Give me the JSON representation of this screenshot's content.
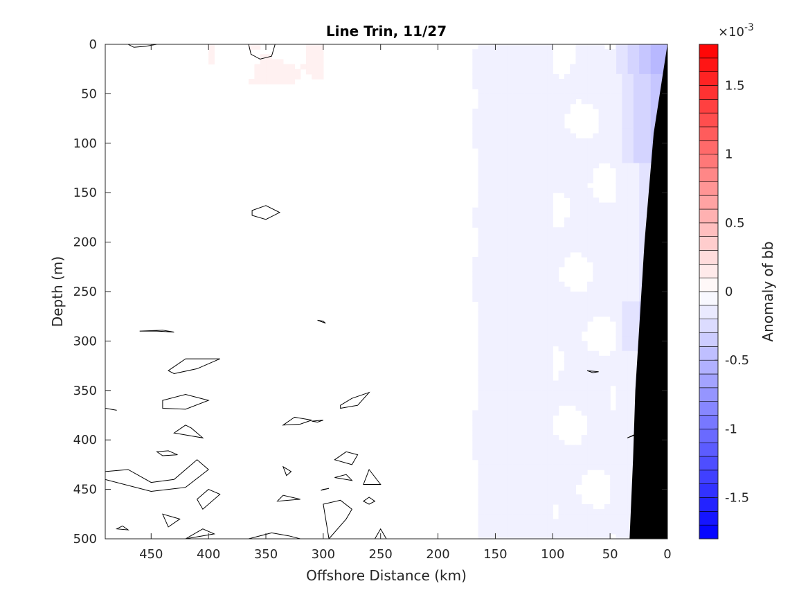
{
  "chart_data": {
    "type": "heatmap",
    "subtype": "filled-contour",
    "title": "Line Trin, 11/27",
    "xlabel": "Offshore Distance (km)",
    "ylabel": "Depth (m)",
    "xlim": [
      490,
      0
    ],
    "xdir": "reverse",
    "ylim": [
      0,
      500
    ],
    "ydir": "reverse",
    "xticks": [
      450,
      400,
      350,
      300,
      250,
      200,
      150,
      100,
      50,
      0
    ],
    "xtick_labels": [
      "450",
      "400",
      "350",
      "300",
      "250",
      "200",
      "150",
      "100",
      "50",
      "0"
    ],
    "yticks": [
      0,
      50,
      100,
      150,
      200,
      250,
      300,
      350,
      400,
      450,
      500
    ],
    "ytick_labels": [
      "0",
      "50",
      "100",
      "150",
      "200",
      "250",
      "300",
      "350",
      "400",
      "450",
      "500"
    ],
    "colorbar": {
      "label": "Anomaly of bb",
      "multiplier_label": "×10",
      "multiplier_exponent": "-3",
      "limits": [
        -1.8,
        1.8
      ],
      "levels": 36,
      "ticks": [
        -1.5,
        -1,
        -0.5,
        0,
        0.5,
        1,
        1.5
      ],
      "tick_labels": [
        "-1.5",
        "-1",
        "-0.5",
        "0",
        "0.5",
        "1",
        "1.5"
      ],
      "colormap": "blue-white-red",
      "low_color": "#0000ff",
      "mid_color": "#ffffff",
      "high_color": "#ff0000"
    },
    "bathymetry_color": "#000000",
    "bathymetry_boundary": [
      {
        "x": 0,
        "y": 0
      },
      {
        "x": 12,
        "y": 90
      },
      {
        "x": 20,
        "y": 200
      },
      {
        "x": 28,
        "y": 350
      },
      {
        "x": 30,
        "y": 420
      },
      {
        "x": 33,
        "y": 500
      }
    ],
    "field_description": {
      "zero_contour_color": "#000000",
      "negative_zone_start_km": 185,
      "strong_negative_zone_km": [
        0,
        45
      ]
    }
  }
}
